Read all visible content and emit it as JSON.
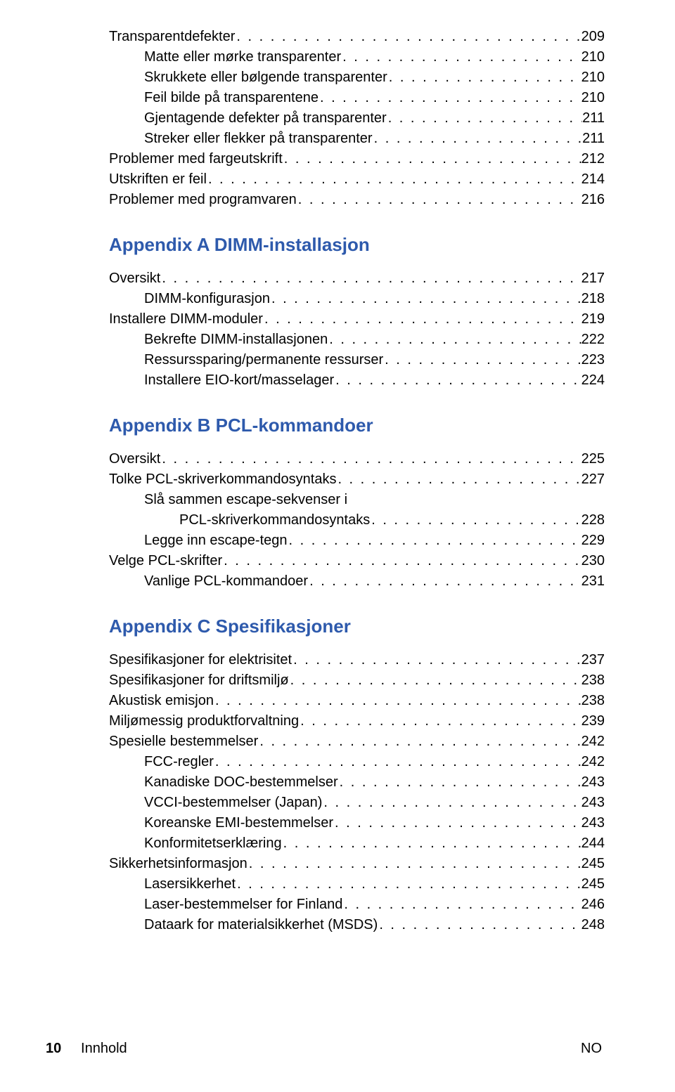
{
  "colors": {
    "heading": "#2e5aac",
    "text": "#000000",
    "background": "#ffffff"
  },
  "typography": {
    "body_fontsize": 20,
    "heading_fontsize": 26,
    "font_family": "Arial, Helvetica, sans-serif"
  },
  "sections": {
    "pre": [
      {
        "level": 0,
        "label": "Transparentdefekter",
        "page": "209"
      },
      {
        "level": 1,
        "label": "Matte eller mørke transparenter",
        "page": "210"
      },
      {
        "level": 1,
        "label": "Skrukkete eller bølgende transparenter",
        "page": "210"
      },
      {
        "level": 1,
        "label": "Feil bilde på transparentene",
        "page": "210"
      },
      {
        "level": 1,
        "label": "Gjentagende defekter på transparenter",
        "page": "211"
      },
      {
        "level": 1,
        "label": "Streker eller flekker på transparenter",
        "page": "211"
      },
      {
        "level": 0,
        "label": "Problemer med fargeutskrift",
        "page": "212"
      },
      {
        "level": 0,
        "label": "Utskriften er feil",
        "page": "214"
      },
      {
        "level": 0,
        "label": "Problemer med programvaren",
        "page": "216"
      }
    ],
    "appendixA": {
      "title": "Appendix A  DIMM-installasjon",
      "items": [
        {
          "level": 0,
          "label": "Oversikt",
          "page": "217"
        },
        {
          "level": 1,
          "label": "DIMM-konfigurasjon",
          "page": "218"
        },
        {
          "level": 0,
          "label": "Installere DIMM-moduler",
          "page": "219"
        },
        {
          "level": 1,
          "label": "Bekrefte DIMM-installasjonen",
          "page": "222"
        },
        {
          "level": 1,
          "label": "Ressurssparing/permanente ressurser",
          "page": "223"
        },
        {
          "level": 1,
          "label": "Installere EIO-kort/masselager",
          "page": "224"
        }
      ]
    },
    "appendixB": {
      "title": "Appendix B  PCL-kommandoer",
      "items_before_wrap": [
        {
          "level": 0,
          "label": "Oversikt",
          "page": "225"
        },
        {
          "level": 0,
          "label": "Tolke PCL-skriverkommandosyntaks",
          "page": "227"
        }
      ],
      "wrap": {
        "line1": "Slå sammen escape-sekvenser i",
        "line2_label": "PCL-skriverkommandosyntaks",
        "page": "228"
      },
      "items_after_wrap": [
        {
          "level": 1,
          "label": "Legge inn escape-tegn",
          "page": "229"
        },
        {
          "level": 0,
          "label": "Velge PCL-skrifter",
          "page": "230"
        },
        {
          "level": 1,
          "label": "Vanlige PCL-kommandoer",
          "page": "231"
        }
      ]
    },
    "appendixC": {
      "title": "Appendix C  Spesifikasjoner",
      "items": [
        {
          "level": 0,
          "label": "Spesifikasjoner for elektrisitet",
          "page": "237"
        },
        {
          "level": 0,
          "label": "Spesifikasjoner for driftsmiljø",
          "page": "238"
        },
        {
          "level": 0,
          "label": "Akustisk emisjon",
          "page": "238"
        },
        {
          "level": 0,
          "label": "Miljømessig produktforvaltning",
          "page": "239"
        },
        {
          "level": 0,
          "label": "Spesielle bestemmelser",
          "page": "242"
        },
        {
          "level": 1,
          "label": "FCC-regler",
          "page": "242"
        },
        {
          "level": 1,
          "label": "Kanadiske DOC-bestemmelser",
          "page": "243"
        },
        {
          "level": 1,
          "label": "VCCI-bestemmelser (Japan)",
          "page": "243"
        },
        {
          "level": 1,
          "label": "Koreanske EMI-bestemmelser",
          "page": "243"
        },
        {
          "level": 1,
          "label": "Konformitetserklæring",
          "page": "244"
        },
        {
          "level": 0,
          "label": "Sikkerhetsinformasjon",
          "page": "245"
        },
        {
          "level": 1,
          "label": "Lasersikkerhet",
          "page": "245"
        },
        {
          "level": 1,
          "label": "Laser-bestemmelser for Finland",
          "page": "246"
        },
        {
          "level": 1,
          "label": "Dataark for materialsikkerhet (MSDS)",
          "page": "248"
        }
      ]
    }
  },
  "footer": {
    "page_number": "10",
    "section_label": "Innhold",
    "lang_code": "NO"
  }
}
